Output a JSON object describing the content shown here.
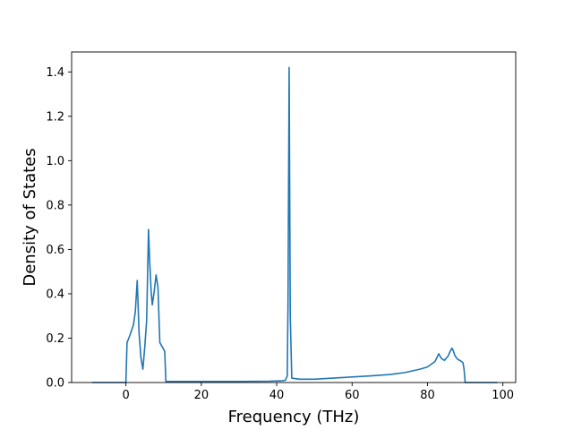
{
  "chart_data": {
    "type": "line",
    "title": "",
    "xlabel": "Frequency (THz)",
    "ylabel": "Density of States",
    "xlim": [
      -14.4,
      103.4
    ],
    "ylim": [
      0.0,
      1.49
    ],
    "xticks": [
      0,
      20,
      40,
      60,
      80,
      100
    ],
    "yticks": [
      0.0,
      0.2,
      0.4,
      0.6,
      0.8,
      1.0,
      1.2,
      1.4
    ],
    "xtick_labels": [
      "0",
      "20",
      "40",
      "60",
      "80",
      "100"
    ],
    "ytick_labels": [
      "0.0",
      "0.2",
      "0.4",
      "0.6",
      "0.8",
      "1.0",
      "1.2",
      "1.4"
    ],
    "grid": false,
    "legend": "none",
    "line_color": "#1f77b4",
    "series": [
      {
        "x": [
          -9.0,
          -0.5,
          0.0,
          0.3,
          1.0,
          2.0,
          2.5,
          3.0,
          3.5,
          4.0,
          4.5,
          5.0,
          5.5,
          6.0,
          6.3,
          6.7,
          7.0,
          7.5,
          8.0,
          8.5,
          9.0,
          10.0,
          10.3,
          10.6,
          15.0,
          20.0,
          30.0,
          38.0,
          41.5,
          42.3,
          42.8,
          43.0,
          43.3,
          43.6,
          44.0,
          46.0,
          50.0,
          55.0,
          60.0,
          65.0,
          70.0,
          74.0,
          78.0,
          80.0,
          82.0,
          83.0,
          83.3,
          83.6,
          84.0,
          84.5,
          85.0,
          85.5,
          86.0,
          86.5,
          86.8,
          87.3,
          88.0,
          89.0,
          89.4,
          89.7,
          90.0,
          98.5
        ],
        "y": [
          0.0,
          0.0,
          0.0,
          0.18,
          0.21,
          0.26,
          0.32,
          0.46,
          0.22,
          0.11,
          0.06,
          0.16,
          0.28,
          0.69,
          0.55,
          0.41,
          0.35,
          0.41,
          0.485,
          0.43,
          0.18,
          0.15,
          0.14,
          0.005,
          0.005,
          0.005,
          0.005,
          0.006,
          0.008,
          0.01,
          0.03,
          0.35,
          1.42,
          0.3,
          0.02,
          0.015,
          0.015,
          0.02,
          0.025,
          0.03,
          0.036,
          0.045,
          0.06,
          0.07,
          0.095,
          0.13,
          0.12,
          0.11,
          0.105,
          0.1,
          0.11,
          0.12,
          0.14,
          0.155,
          0.145,
          0.12,
          0.105,
          0.095,
          0.09,
          0.06,
          0.0,
          0.0
        ]
      }
    ]
  }
}
